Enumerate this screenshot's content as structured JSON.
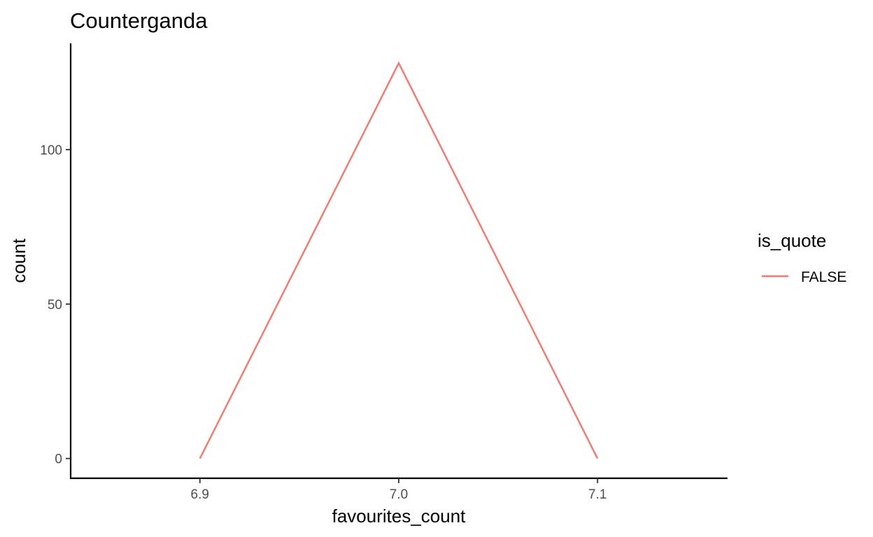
{
  "chart_data": {
    "type": "line",
    "title": "Counterganda",
    "xlabel": "favourites_count",
    "ylabel": "count",
    "x": [
      6.9,
      7.0,
      7.1
    ],
    "xlim": [
      6.835,
      7.165
    ],
    "ylim": [
      -6.4,
      134.4
    ],
    "x_ticks": [
      6.9,
      7.0,
      7.1
    ],
    "x_tick_labels": [
      "6.9",
      "7.0",
      "7.1"
    ],
    "y_ticks": [
      0,
      50,
      100
    ],
    "y_tick_labels": [
      "0",
      "50",
      "100"
    ],
    "grid": false,
    "legend": {
      "title": "is_quote",
      "placement": "right",
      "entries": [
        {
          "label": "FALSE",
          "color": "#F8766D"
        }
      ]
    },
    "series": [
      {
        "name": "FALSE",
        "color": "#F8766D",
        "values": [
          0,
          128,
          0
        ]
      }
    ]
  }
}
